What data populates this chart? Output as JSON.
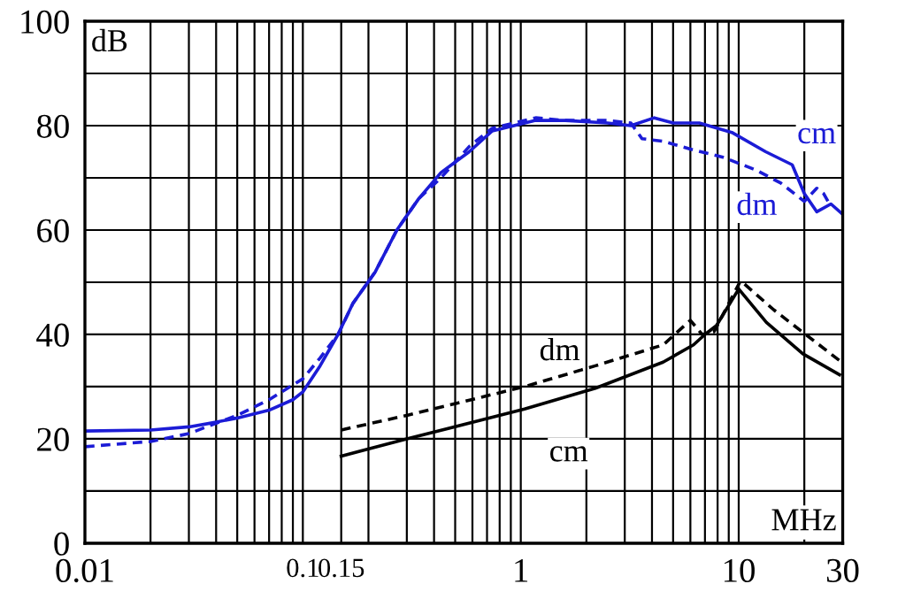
{
  "chart_data": {
    "type": "line",
    "xlabel": "MHz",
    "ylabel": "dB",
    "log": "x",
    "grid": true,
    "legend": false,
    "xlim": [
      0.01,
      30
    ],
    "ylim": [
      0,
      100
    ],
    "xticks": [
      {
        "value": 0.01,
        "label": "0.01"
      },
      {
        "value": 0.02,
        "label": null
      },
      {
        "value": 0.03,
        "label": null
      },
      {
        "value": 0.04,
        "label": null
      },
      {
        "value": 0.05,
        "label": null
      },
      {
        "value": 0.06,
        "label": null
      },
      {
        "value": 0.07,
        "label": null
      },
      {
        "value": 0.08,
        "label": null
      },
      {
        "value": 0.09,
        "label": null
      },
      {
        "value": 0.1,
        "label": "0.1"
      },
      {
        "value": 0.15,
        "label": "0.15"
      },
      {
        "value": 0.2,
        "label": null
      },
      {
        "value": 0.3,
        "label": null
      },
      {
        "value": 0.4,
        "label": null
      },
      {
        "value": 0.5,
        "label": null
      },
      {
        "value": 0.6,
        "label": null
      },
      {
        "value": 0.7,
        "label": null
      },
      {
        "value": 0.8,
        "label": null
      },
      {
        "value": 0.9,
        "label": null
      },
      1,
      {
        "value": 2,
        "label": null
      },
      {
        "value": 3,
        "label": null
      },
      {
        "value": 4,
        "label": null
      },
      {
        "value": 5,
        "label": null
      },
      {
        "value": 6,
        "label": null
      },
      {
        "value": 7,
        "label": null
      },
      {
        "value": 8,
        "label": null
      },
      {
        "value": 9,
        "label": null
      },
      10,
      {
        "value": 20,
        "label": null
      },
      30
    ],
    "yticks": [
      0,
      {
        "value": 10,
        "label": null
      },
      20,
      {
        "value": 30,
        "label": null
      },
      40,
      {
        "value": 50,
        "label": null
      },
      60,
      {
        "value": 70,
        "label": null
      },
      80,
      {
        "value": 90,
        "label": null
      },
      100
    ],
    "series": [
      {
        "name": "cm",
        "color": "#1c1cd6",
        "line_style": "solid",
        "x": [
          0.01,
          0.02,
          0.03,
          0.04,
          0.05,
          0.07,
          0.09,
          0.1,
          0.12,
          0.145,
          0.17,
          0.215,
          0.27,
          0.34,
          0.43,
          0.58,
          0.74,
          1.17,
          1.6,
          2.5,
          3.2,
          4.1,
          5,
          6.6,
          9.3,
          13.3,
          17.6,
          20,
          22.8,
          26.5,
          30
        ],
        "values": [
          21.5,
          21.7,
          22.3,
          23.2,
          24,
          25.5,
          27.5,
          29,
          34,
          40,
          46,
          52,
          60,
          66,
          71,
          75,
          79,
          81,
          81,
          80.5,
          80,
          81.5,
          80.5,
          80.5,
          78.7,
          75,
          72.5,
          67,
          63.5,
          65,
          63
        ]
      },
      {
        "name": "dm",
        "color": "#1c1cd6",
        "line_style": "dashed",
        "x": [
          0.01,
          0.02,
          0.03,
          0.04,
          0.05,
          0.07,
          0.1,
          0.12,
          0.145,
          0.17,
          0.215,
          0.27,
          0.34,
          0.43,
          0.58,
          0.74,
          1.17,
          1.6,
          2.5,
          3.2,
          3.6,
          4.5,
          6,
          8.4,
          12,
          15.6,
          20,
          22.8,
          24.5,
          26.5
        ],
        "values": [
          18.5,
          19.5,
          21,
          23,
          24.5,
          27.5,
          31.5,
          35.5,
          40,
          46,
          52,
          60,
          66,
          70,
          76,
          79.5,
          81.5,
          81,
          81,
          80.5,
          77.5,
          77,
          75.5,
          74,
          71.5,
          69,
          65.5,
          68,
          67,
          64.5
        ]
      },
      {
        "name": "cm",
        "color": "#000000",
        "line_style": "solid",
        "x": [
          0.15,
          0.3,
          1.04,
          2.2,
          4.5,
          6.2,
          7,
          7.9,
          10,
          13.4,
          19.7,
          29
        ],
        "values": [
          16.7,
          20,
          25.7,
          29.7,
          34.7,
          38,
          40,
          41.7,
          48.7,
          42.3,
          36.3,
          32.3
        ]
      },
      {
        "name": "dm",
        "color": "#000000",
        "line_style": "dashed",
        "x": [
          0.15,
          0.3,
          1.04,
          2.2,
          4.5,
          6,
          6.8,
          7.7,
          10.2,
          14.5,
          29
        ],
        "values": [
          21.7,
          24.5,
          30,
          34,
          38,
          42.7,
          40,
          40.5,
          50.3,
          44.7,
          35
        ]
      }
    ]
  }
}
